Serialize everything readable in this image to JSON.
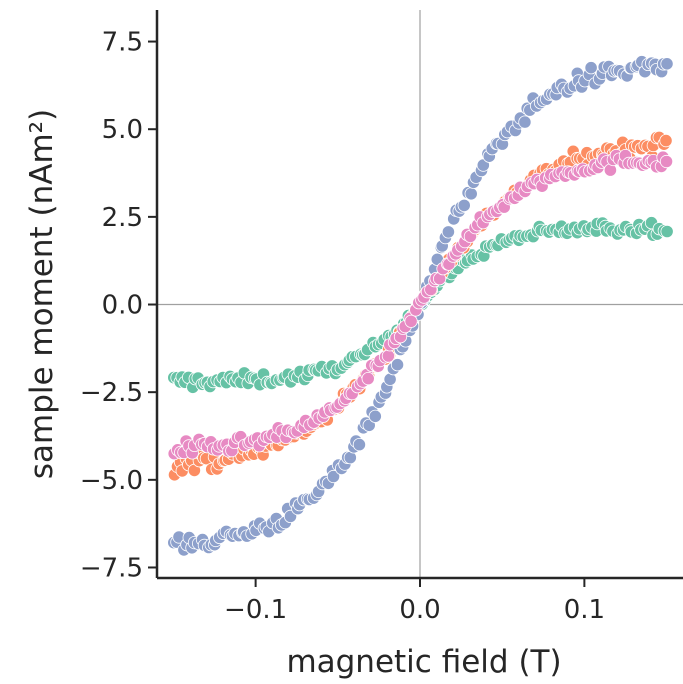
{
  "chart_data": {
    "type": "scatter",
    "xlabel": "magnetic field (T)",
    "ylabel": "sample moment (nAm²)",
    "xlim": [
      -0.16,
      0.16
    ],
    "ylim": [
      -7.8,
      8.4
    ],
    "x_ticks": [
      -0.1,
      0.0,
      0.1
    ],
    "x_tick_labels": [
      "−0.1",
      "0.0",
      "0.1"
    ],
    "y_ticks": [
      -7.5,
      -5.0,
      -2.5,
      0.0,
      2.5,
      5.0,
      7.5
    ],
    "y_tick_labels": [
      "−7.5",
      "−5.0",
      "−2.5",
      "0.0",
      "2.5",
      "5.0",
      "7.5"
    ],
    "reference_lines": {
      "x": 0.0,
      "y": 0.0,
      "color": "#a0a0a0"
    },
    "grid": false,
    "legend": "none",
    "x_range": [
      -0.15,
      0.15
    ],
    "points_per_series": 160,
    "series": [
      {
        "color": "#66c2a5",
        "saturation": 2.2,
        "width": 0.045,
        "center_slope": 18,
        "spread": 0.2
      },
      {
        "color": "#fc8d62",
        "saturation": 4.7,
        "width": 0.07,
        "center_slope": 55,
        "spread": 0.24
      },
      {
        "color": "#8da0cb",
        "saturation": 6.9,
        "width": 0.06,
        "center_slope": 75,
        "spread": 0.28
      },
      {
        "color": "#e78ac3",
        "saturation": 4.2,
        "width": 0.06,
        "center_slope": 50,
        "spread": 0.22
      }
    ]
  }
}
